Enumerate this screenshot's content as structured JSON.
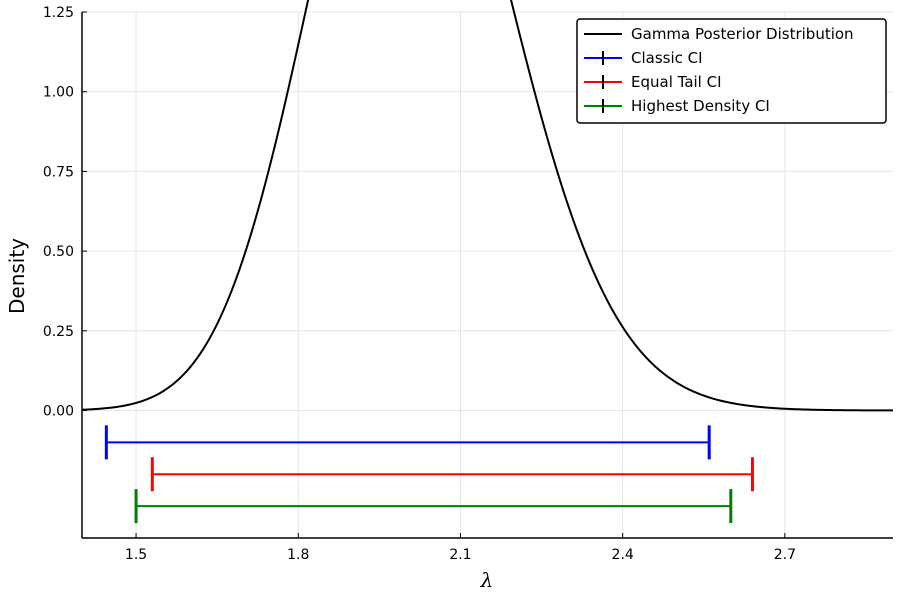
{
  "chart_data": {
    "type": "line",
    "xlabel": "λ",
    "ylabel": "Density",
    "xlim": [
      1.4,
      2.9
    ],
    "ylim": [
      -0.4,
      1.25
    ],
    "x_ticks": [
      1.5,
      1.8,
      2.1,
      2.4,
      2.7
    ],
    "x_tick_labels": [
      "1.5",
      "1.8",
      "2.1",
      "2.4",
      "2.7"
    ],
    "y_ticks": [
      0.0,
      0.25,
      0.5,
      0.75,
      1.0,
      1.25
    ],
    "y_tick_labels": [
      "0.00",
      "0.25",
      "0.50",
      "0.75",
      "1.00",
      "1.25"
    ],
    "grid": true,
    "legend_position": "top-right",
    "curve": {
      "name": "Gamma Posterior Distribution",
      "color": "#000000",
      "distribution": "gamma",
      "shape": 121,
      "rate": 60,
      "x_range": [
        1.4,
        2.9
      ]
    },
    "intervals": [
      {
        "name": "Classic CI",
        "color": "#0000ff",
        "lower": 1.445,
        "upper": 2.56,
        "y": -0.1
      },
      {
        "name": "Equal Tail CI",
        "color": "#ff0000",
        "lower": 1.53,
        "upper": 2.64,
        "y": -0.2
      },
      {
        "name": "Highest Density CI",
        "color": "#008000",
        "lower": 1.5,
        "upper": 2.6,
        "y": -0.3
      }
    ]
  }
}
